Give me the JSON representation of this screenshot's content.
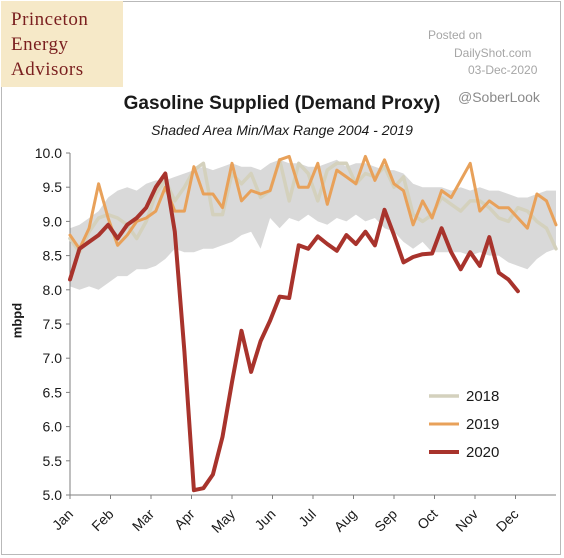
{
  "logo": {
    "line1": "Princeton",
    "line2": "Energy",
    "line3": "Advisors"
  },
  "credit": {
    "line1": "Posted on",
    "line2": "DailyShot.com",
    "line3": "03-Dec-2020"
  },
  "watermark": "@SoberLook",
  "chart_data": {
    "type": "line",
    "title": "Gasoline Supplied (Demand Proxy)",
    "subtitle": "Shaded Area Min/Max Range 2004 - 2019",
    "ylabel": "mbpd",
    "ylim": [
      5.0,
      10.0
    ],
    "yticks": [
      "10.0",
      "9.5",
      "9.0",
      "8.5",
      "8.0",
      "7.5",
      "7.0",
      "6.5",
      "6.0",
      "5.5",
      "5.0"
    ],
    "months": [
      "Jan",
      "Feb",
      "Mar",
      "Apr",
      "May",
      "Jun",
      "Jul",
      "Aug",
      "Sep",
      "Oct",
      "Nov",
      "Dec"
    ],
    "x_unit": "week of year",
    "legend": {
      "position": "bottom-right",
      "entries": [
        "2018",
        "2019",
        "2020"
      ]
    },
    "range_band": {
      "weeks": [
        1,
        2,
        3,
        4,
        5,
        6,
        7,
        8,
        9,
        10,
        11,
        12,
        13,
        14,
        15,
        16,
        17,
        18,
        19,
        20,
        21,
        22,
        23,
        24,
        25,
        26,
        27,
        28,
        29,
        30,
        31,
        32,
        33,
        34,
        35,
        36,
        37,
        38,
        39,
        40,
        41,
        42,
        43,
        44,
        45,
        46,
        47,
        48,
        49,
        50,
        51,
        52
      ],
      "min": [
        8.05,
        8.0,
        8.05,
        8.0,
        8.1,
        8.2,
        8.2,
        8.3,
        8.3,
        8.35,
        8.45,
        8.6,
        8.55,
        8.55,
        8.6,
        8.6,
        8.65,
        8.7,
        8.8,
        8.85,
        8.6,
        9.05,
        8.9,
        9.05,
        9.0,
        9.1,
        9.0,
        8.95,
        9.05,
        9.0,
        9.1,
        9.0,
        9.05,
        8.9,
        8.85,
        8.7,
        8.6,
        8.7,
        8.55,
        8.55,
        8.55,
        8.55,
        8.5,
        8.55,
        8.5,
        8.5,
        8.4,
        8.35,
        8.3,
        8.45,
        8.55,
        8.6
      ],
      "max": [
        8.9,
        8.95,
        9.05,
        9.15,
        9.35,
        9.45,
        9.5,
        9.45,
        9.55,
        9.6,
        9.6,
        9.65,
        9.7,
        9.75,
        9.8,
        9.75,
        9.8,
        9.85,
        9.8,
        9.8,
        9.75,
        9.85,
        9.9,
        9.85,
        9.85,
        9.8,
        9.8,
        9.85,
        9.9,
        9.8,
        9.85,
        9.85,
        9.8,
        9.75,
        9.75,
        9.7,
        9.55,
        9.5,
        9.5,
        9.5,
        9.45,
        9.5,
        9.45,
        9.5,
        9.45,
        9.45,
        9.4,
        9.35,
        9.35,
        9.4,
        9.45,
        9.45
      ]
    },
    "series": [
      {
        "name": "2018",
        "color": "#d4d1bd",
        "x": [
          1,
          2,
          3,
          4,
          5,
          6,
          7,
          8,
          9,
          10,
          11,
          12,
          13,
          14,
          15,
          16,
          17,
          18,
          19,
          20,
          21,
          22,
          23,
          24,
          25,
          26,
          27,
          28,
          29,
          30,
          31,
          32,
          33,
          34,
          35,
          36,
          37,
          38,
          39,
          40,
          41,
          42,
          43,
          44,
          45,
          46,
          47,
          48,
          49,
          50,
          51,
          52
        ],
        "y": [
          8.75,
          8.55,
          8.85,
          9.05,
          9.1,
          9.05,
          8.95,
          8.75,
          9.0,
          9.4,
          9.6,
          9.3,
          9.5,
          9.75,
          9.85,
          9.1,
          9.1,
          9.7,
          9.55,
          9.7,
          9.35,
          9.45,
          9.9,
          9.3,
          9.85,
          9.7,
          9.3,
          9.75,
          9.85,
          9.85,
          9.55,
          9.7,
          9.65,
          9.8,
          9.5,
          9.65,
          9.1,
          9.0,
          9.1,
          9.35,
          9.25,
          9.15,
          9.3,
          9.3,
          9.2,
          9.05,
          9.0,
          9.2,
          9.15,
          9.0,
          8.9,
          8.6
        ]
      },
      {
        "name": "2019",
        "color": "#e8a15a",
        "x": [
          1,
          2,
          3,
          4,
          5,
          6,
          7,
          8,
          9,
          10,
          11,
          12,
          13,
          14,
          15,
          16,
          17,
          18,
          19,
          20,
          21,
          22,
          23,
          24,
          25,
          26,
          27,
          28,
          29,
          30,
          31,
          32,
          33,
          34,
          35,
          36,
          37,
          38,
          39,
          40,
          41,
          42,
          43,
          44,
          45,
          46,
          47,
          48,
          49,
          50,
          51,
          52
        ],
        "y": [
          8.8,
          8.6,
          8.9,
          9.55,
          9.05,
          8.65,
          8.8,
          9.0,
          9.05,
          9.15,
          9.5,
          9.15,
          9.15,
          9.8,
          9.4,
          9.4,
          9.2,
          9.85,
          9.3,
          9.45,
          9.4,
          9.45,
          9.9,
          9.95,
          9.5,
          9.5,
          9.85,
          9.25,
          9.75,
          9.65,
          9.55,
          9.95,
          9.6,
          9.9,
          9.55,
          9.45,
          8.95,
          9.3,
          9.05,
          9.45,
          9.35,
          9.6,
          9.85,
          9.15,
          9.3,
          9.2,
          9.2,
          9.05,
          8.9,
          9.4,
          9.3,
          8.95
        ]
      },
      {
        "name": "2020",
        "color": "#a8332c",
        "x": [
          1,
          2,
          3,
          4,
          5,
          6,
          7,
          8,
          9,
          10,
          11,
          12,
          13,
          14,
          15,
          16,
          17,
          18,
          19,
          20,
          21,
          22,
          23,
          24,
          25,
          26,
          27,
          28,
          29,
          30,
          31,
          32,
          33,
          34,
          35,
          36,
          37,
          38,
          39,
          40,
          41,
          42,
          43,
          44,
          45,
          46,
          47,
          48
        ],
        "y": [
          8.15,
          8.6,
          8.7,
          8.8,
          8.95,
          8.75,
          8.95,
          9.05,
          9.2,
          9.5,
          9.7,
          8.85,
          7.1,
          5.07,
          5.1,
          5.3,
          5.85,
          6.65,
          7.4,
          6.8,
          7.25,
          7.55,
          7.9,
          7.88,
          8.65,
          8.6,
          8.78,
          8.67,
          8.57,
          8.8,
          8.67,
          8.85,
          8.65,
          9.17,
          8.8,
          8.4,
          8.48,
          8.52,
          8.53,
          8.9,
          8.55,
          8.3,
          8.55,
          8.35,
          8.77,
          8.25,
          8.15,
          7.98
        ]
      }
    ]
  }
}
